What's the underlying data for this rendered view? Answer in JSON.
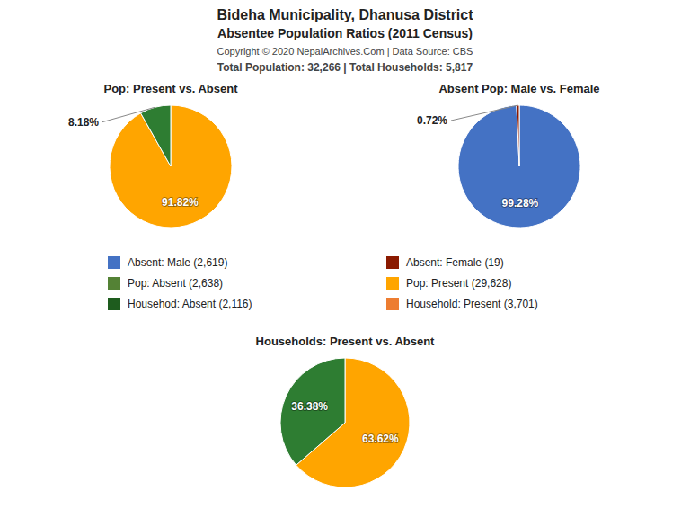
{
  "title": "Bideha Municipality, Dhanusa District",
  "subtitle": "Absentee Population Ratios (2011 Census)",
  "annotations": [
    "Copyright © 2020 NepalArchives.Com | Data Source: CBS",
    "Total Population: 32,266 | Total Households: 5,817"
  ],
  "chart_data": [
    {
      "type": "pie",
      "title": "Pop: Present vs. Absent",
      "values": [
        91.82,
        8.18
      ],
      "value_labels": [
        "91.82%",
        "8.18%"
      ],
      "colors": [
        "#FFA500",
        "#2e7d32"
      ],
      "data_labels": true
    },
    {
      "type": "pie",
      "title": "Absent Pop: Male vs. Female",
      "values": [
        99.28,
        0.72
      ],
      "value_labels": [
        "99.28%",
        "0.72%"
      ],
      "colors": [
        "#4472C4",
        "#8B1a00"
      ],
      "data_labels": true
    },
    {
      "type": "legend",
      "categories": [
        "Absent: Male (2,619)",
        "Absent: Female (19)",
        "Pop: Absent (2,638)",
        "Pop: Present (29,628)",
        "Househod: Absent (2,116)",
        "Household: Present (3,701)"
      ],
      "colors": [
        "#4472C4",
        "#8B1a00",
        "#548235",
        "#FFA500",
        "#1e5c1e",
        "#ED7D31"
      ]
    },
    {
      "type": "pie",
      "title": "Households: Present vs. Absent",
      "values": [
        63.62,
        36.38
      ],
      "value_labels": [
        "63.62%",
        "36.38%"
      ],
      "colors": [
        "#FFA500",
        "#2e7d32"
      ],
      "data_labels": true
    }
  ]
}
